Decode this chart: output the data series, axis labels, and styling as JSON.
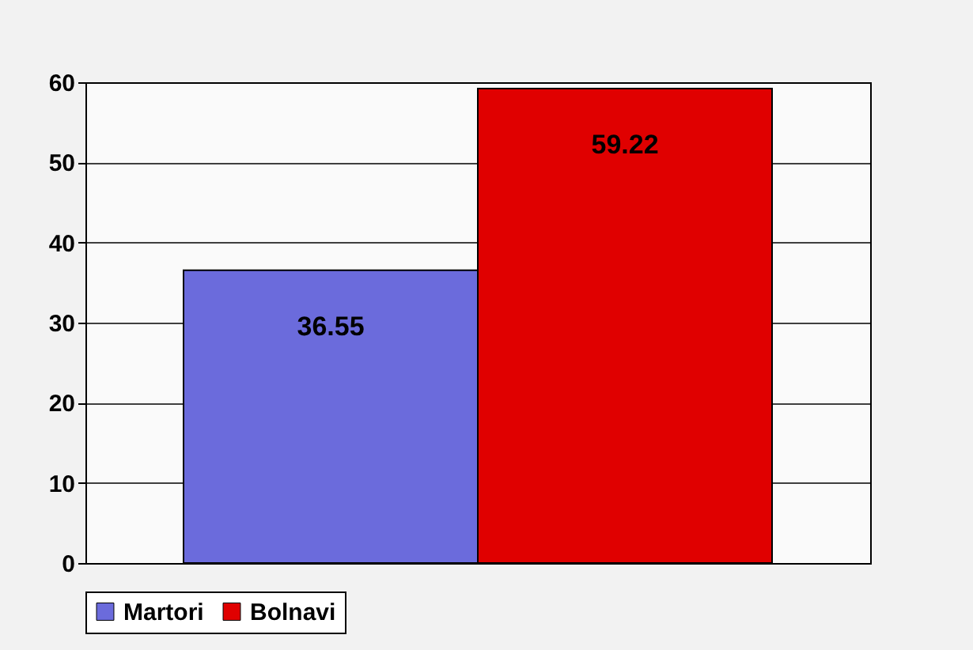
{
  "chart_data": {
    "type": "bar",
    "categories": [
      null
    ],
    "series": [
      {
        "name": "Martori",
        "color": "#6b6bdc",
        "values": [
          36.55
        ]
      },
      {
        "name": "Bolnavi",
        "color": "#e00000",
        "values": [
          59.22
        ]
      }
    ],
    "ylim": [
      0,
      60
    ],
    "yticks": [
      0,
      10,
      20,
      30,
      40,
      50,
      60
    ],
    "grid": "y",
    "legend": "bottom",
    "data_labels": true,
    "tick_labels": "y"
  }
}
